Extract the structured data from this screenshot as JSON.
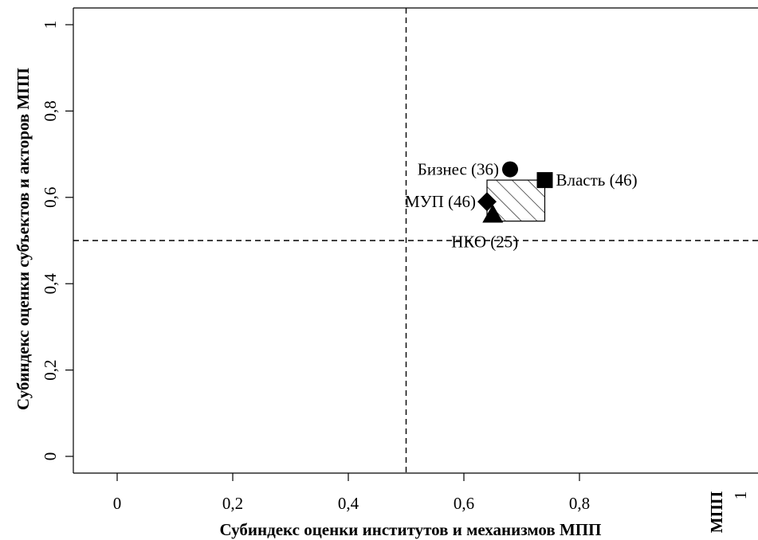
{
  "chart_data": {
    "type": "scatter",
    "xlabel": "Субиндекс оценки институтов и механизмов МПП",
    "ylabel": "Субиндекс оценки субъектов и акторов МПП",
    "xlim": [
      0,
      1
    ],
    "ylim": [
      0,
      1
    ],
    "x_ticks": [
      {
        "value": 0,
        "label": "0"
      },
      {
        "value": 0.2,
        "label": "0,2"
      },
      {
        "value": 0.4,
        "label": "0,4"
      },
      {
        "value": 0.6,
        "label": "0,6"
      },
      {
        "value": 0.8,
        "label": "0,8"
      }
    ],
    "y_ticks": [
      {
        "value": 0,
        "label": "0"
      },
      {
        "value": 0.2,
        "label": "0,2"
      },
      {
        "value": 0.4,
        "label": "0,4"
      },
      {
        "value": 0.6,
        "label": "0,6"
      },
      {
        "value": 0.8,
        "label": "0,8"
      },
      {
        "value": 1,
        "label": "1"
      }
    ],
    "reference_lines": {
      "x": 0.5,
      "y": 0.5
    },
    "range_box": {
      "x": [
        0.64,
        0.74
      ],
      "y": [
        0.545,
        0.64
      ]
    },
    "points": [
      {
        "label": "Бизнес (36)",
        "x": 0.68,
        "y": 0.665,
        "marker": "circle",
        "label_side": "left"
      },
      {
        "label": "Власть (46)",
        "x": 0.74,
        "y": 0.64,
        "marker": "square",
        "label_side": "right"
      },
      {
        "label": "МУП (46)",
        "x": 0.64,
        "y": 0.59,
        "marker": "diamond",
        "label_side": "left"
      },
      {
        "label": "НКО (25)",
        "x": 0.65,
        "y": 0.56,
        "marker": "triangle",
        "label_side": "below"
      }
    ],
    "grid": false,
    "legend": "none",
    "marker_color": "#000000"
  },
  "stray_labels": {
    "corner_tick": "1",
    "corner_text": "МПП"
  }
}
